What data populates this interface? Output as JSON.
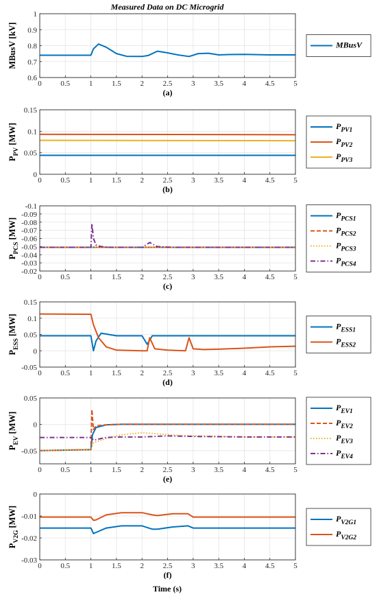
{
  "title": "Measured Data on DC Microgrid",
  "xlabel": "Time (s)",
  "colors": {
    "blue": "#0072BD",
    "red": "#D95319",
    "yellow": "#EDB120",
    "purple": "#7E2F8E"
  },
  "chart_data": [
    {
      "type": "line",
      "subtitle": "(a)",
      "ylabel": "MBusV [kV]",
      "xlim": [
        0,
        5
      ],
      "ylim": [
        0.6,
        1
      ],
      "xticks": [
        "0",
        "0.5",
        "1",
        "1.5",
        "2",
        "2.5",
        "3",
        "3.5",
        "4",
        "4.5",
        "5"
      ],
      "yticks": [
        "0.6",
        "0.7",
        "0.8",
        "0.9",
        "1"
      ],
      "grid": true,
      "legend": "right",
      "series": [
        {
          "name": "MBusV",
          "color": "#0072BD",
          "style": "solid",
          "x": [
            0,
            1.0,
            1.05,
            1.15,
            1.3,
            1.5,
            1.7,
            2.0,
            2.12,
            2.3,
            2.5,
            2.7,
            2.92,
            3.1,
            3.3,
            3.5,
            3.7,
            4.0,
            4.5,
            5.0
          ],
          "y": [
            0.74,
            0.74,
            0.78,
            0.81,
            0.79,
            0.75,
            0.733,
            0.732,
            0.738,
            0.765,
            0.755,
            0.742,
            0.732,
            0.75,
            0.752,
            0.742,
            0.744,
            0.745,
            0.742,
            0.742
          ]
        }
      ]
    },
    {
      "type": "line",
      "subtitle": "(b)",
      "ylabel": "P",
      "ylabel_sub": "PV",
      "ylabel_unit": "[MW]",
      "xlim": [
        0,
        5
      ],
      "ylim": [
        0,
        0.15
      ],
      "xticks": [
        "0",
        "0.5",
        "1",
        "1.5",
        "2",
        "2.5",
        "3",
        "3.5",
        "4",
        "4.5",
        "5"
      ],
      "yticks": [
        "0",
        "0.05",
        "0.1",
        "0.15"
      ],
      "grid": true,
      "legend": "right",
      "series": [
        {
          "name": "P",
          "sub": "PV1",
          "color": "#0072BD",
          "style": "solid",
          "x": [
            0,
            5
          ],
          "y": [
            0.044,
            0.044
          ]
        },
        {
          "name": "P",
          "sub": "PV2",
          "color": "#D95319",
          "style": "solid",
          "x": [
            0,
            5
          ],
          "y": [
            0.093,
            0.092
          ]
        },
        {
          "name": "P",
          "sub": "PV3",
          "color": "#EDB120",
          "style": "solid",
          "x": [
            0,
            5
          ],
          "y": [
            0.079,
            0.078
          ]
        }
      ]
    },
    {
      "type": "line",
      "subtitle": "(c)",
      "ylabel": "P",
      "ylabel_sub": "PCS",
      "ylabel_unit": "[MW]",
      "xlim": [
        0,
        5
      ],
      "ylim": [
        -0.02,
        -0.1
      ],
      "xticks": [
        "0",
        "0.5",
        "1",
        "1.5",
        "2",
        "2.5",
        "3",
        "3.5",
        "4",
        "4.5",
        "5"
      ],
      "yticks": [
        "-0.02",
        "-0.03",
        "-0.04",
        "-0.05",
        "-0.06",
        "-0.07",
        "-0.08",
        "-0.09",
        "-0.1"
      ],
      "grid": true,
      "legend": "right",
      "series": [
        {
          "name": "P",
          "sub": "PCS1",
          "color": "#0072BD",
          "style": "solid",
          "x": [
            0,
            5
          ],
          "y": [
            -0.049,
            -0.049
          ]
        },
        {
          "name": "P",
          "sub": "PCS2",
          "color": "#D95319",
          "style": "dashed",
          "x": [
            0,
            5
          ],
          "y": [
            -0.049,
            -0.049
          ]
        },
        {
          "name": "P",
          "sub": "PCS3",
          "color": "#EDB120",
          "style": "dotted",
          "x": [
            0,
            5
          ],
          "y": [
            -0.049,
            -0.049
          ]
        },
        {
          "name": "P",
          "sub": "PCS4",
          "color": "#7E2F8E",
          "style": "dashdot",
          "x": [
            0,
            1.0,
            1.02,
            1.05,
            1.1,
            1.2,
            1.4,
            1.6,
            2.0,
            2.15,
            2.3,
            2.6,
            3.0,
            3.5,
            4.0,
            4.5,
            5.0
          ],
          "y": [
            -0.049,
            -0.049,
            -0.078,
            -0.06,
            -0.052,
            -0.05,
            -0.049,
            -0.049,
            -0.049,
            -0.055,
            -0.05,
            -0.049,
            -0.049,
            -0.049,
            -0.049,
            -0.049,
            -0.049
          ]
        }
      ]
    },
    {
      "type": "line",
      "subtitle": "(d)",
      "ylabel": "P",
      "ylabel_sub": "ESS",
      "ylabel_unit": "[MW]",
      "xlim": [
        0,
        5
      ],
      "ylim": [
        -0.05,
        0.15
      ],
      "xticks": [
        "0",
        "0.5",
        "1",
        "1.5",
        "2",
        "2.5",
        "3",
        "3.5",
        "4",
        "4.5",
        "5"
      ],
      "yticks": [
        "-0.05",
        "0",
        "0.05",
        "0.1",
        "0.15"
      ],
      "grid": true,
      "legend": "right",
      "series": [
        {
          "name": "P",
          "sub": "ESS1",
          "color": "#0072BD",
          "style": "solid",
          "x": [
            0,
            1.0,
            1.05,
            1.1,
            1.2,
            1.5,
            2.0,
            2.1,
            2.2,
            2.5,
            2.9,
            3.0,
            3.2,
            3.5,
            4.0,
            4.5,
            5.0
          ],
          "y": [
            0.046,
            0.046,
            0.0,
            0.03,
            0.054,
            0.046,
            0.046,
            0.02,
            0.046,
            0.046,
            0.046,
            0.046,
            0.046,
            0.046,
            0.046,
            0.046,
            0.046
          ]
        },
        {
          "name": "P",
          "sub": "ESS2",
          "color": "#D95319",
          "style": "solid",
          "x": [
            0,
            1.0,
            1.05,
            1.15,
            1.3,
            1.5,
            2.0,
            2.1,
            2.15,
            2.25,
            2.5,
            2.85,
            2.92,
            3.0,
            3.2,
            3.5,
            4.0,
            4.5,
            5.0
          ],
          "y": [
            0.113,
            0.112,
            0.08,
            0.04,
            0.012,
            0.002,
            0.0,
            0.0,
            0.04,
            0.006,
            0.002,
            0.0,
            0.04,
            0.006,
            0.004,
            0.005,
            0.008,
            0.012,
            0.014
          ]
        }
      ]
    },
    {
      "type": "line",
      "subtitle": "(e)",
      "ylabel": "P",
      "ylabel_sub": "EV",
      "ylabel_unit": "[MW]",
      "xlim": [
        0,
        5
      ],
      "ylim": [
        -0.075,
        0.05
      ],
      "xticks": [
        "0",
        "0.5",
        "1",
        "1.5",
        "2",
        "2.5",
        "3",
        "3.5",
        "4",
        "4.5",
        "5"
      ],
      "yticks": [
        "-0.05",
        "0",
        "0.05"
      ],
      "grid": true,
      "legend": "right",
      "series": [
        {
          "name": "P",
          "sub": "EV1",
          "color": "#0072BD",
          "style": "solid",
          "x": [
            0,
            1.0,
            1.03,
            1.1,
            1.3,
            1.6,
            2.0,
            5.0
          ],
          "y": [
            -0.05,
            -0.048,
            -0.02,
            -0.006,
            -0.001,
            0.0,
            0.0,
            0.0
          ]
        },
        {
          "name": "P",
          "sub": "EV2",
          "color": "#D95319",
          "style": "dashed",
          "x": [
            0,
            1.0,
            1.02,
            1.05,
            1.1,
            1.3,
            1.6,
            2.0,
            5.0
          ],
          "y": [
            -0.05,
            -0.048,
            0.028,
            -0.01,
            -0.003,
            -0.001,
            0.0,
            0.0,
            0.0
          ]
        },
        {
          "name": "P",
          "sub": "EV3",
          "color": "#EDB120",
          "style": "dotted",
          "x": [
            0,
            1.0,
            1.05,
            1.3,
            1.6,
            2.0,
            2.3,
            2.7,
            3.0,
            3.5,
            4.0,
            5.0
          ],
          "y": [
            -0.05,
            -0.048,
            -0.035,
            -0.027,
            -0.02,
            -0.016,
            -0.018,
            -0.021,
            -0.022,
            -0.023,
            -0.024,
            -0.024
          ]
        },
        {
          "name": "P",
          "sub": "EV4",
          "color": "#7E2F8E",
          "style": "dashdot",
          "x": [
            0,
            1.0,
            1.05,
            1.15,
            1.3,
            1.6,
            2.0,
            2.5,
            3.0,
            4.0,
            5.0
          ],
          "y": [
            -0.025,
            -0.025,
            -0.03,
            -0.028,
            -0.025,
            -0.024,
            -0.024,
            -0.022,
            -0.023,
            -0.024,
            -0.024
          ]
        }
      ]
    },
    {
      "type": "line",
      "subtitle": "(f)",
      "ylabel": "P",
      "ylabel_sub": "V2G",
      "ylabel_unit": "[MW]",
      "xlim": [
        0,
        5
      ],
      "ylim": [
        -0.03,
        0
      ],
      "xticks": [
        "0",
        "0.5",
        "1",
        "1.5",
        "2",
        "2.5",
        "3",
        "3.5",
        "4",
        "4.5",
        "5"
      ],
      "yticks": [
        "-0.03",
        "-0.02",
        "-0.01",
        "0"
      ],
      "grid": true,
      "legend": "right",
      "series": [
        {
          "name": "P",
          "sub": "V2G1",
          "color": "#0072BD",
          "style": "solid",
          "x": [
            0,
            1.0,
            1.05,
            1.1,
            1.3,
            1.6,
            2.0,
            2.2,
            2.3,
            2.6,
            2.9,
            3.0,
            3.5,
            4.0,
            5.0
          ],
          "y": [
            -0.0155,
            -0.0155,
            -0.018,
            -0.0175,
            -0.0155,
            -0.0145,
            -0.0145,
            -0.016,
            -0.016,
            -0.015,
            -0.0145,
            -0.0155,
            -0.0155,
            -0.0155,
            -0.0155
          ]
        },
        {
          "name": "P",
          "sub": "V2G2",
          "color": "#D95319",
          "style": "solid",
          "x": [
            0,
            1.0,
            1.05,
            1.1,
            1.3,
            1.6,
            2.0,
            2.2,
            2.3,
            2.6,
            2.9,
            3.0,
            3.5,
            4.0,
            5.0
          ],
          "y": [
            -0.0105,
            -0.0105,
            -0.012,
            -0.0118,
            -0.0095,
            -0.0085,
            -0.0085,
            -0.0095,
            -0.0098,
            -0.009,
            -0.009,
            -0.0105,
            -0.0105,
            -0.0105,
            -0.0105
          ]
        }
      ]
    }
  ]
}
